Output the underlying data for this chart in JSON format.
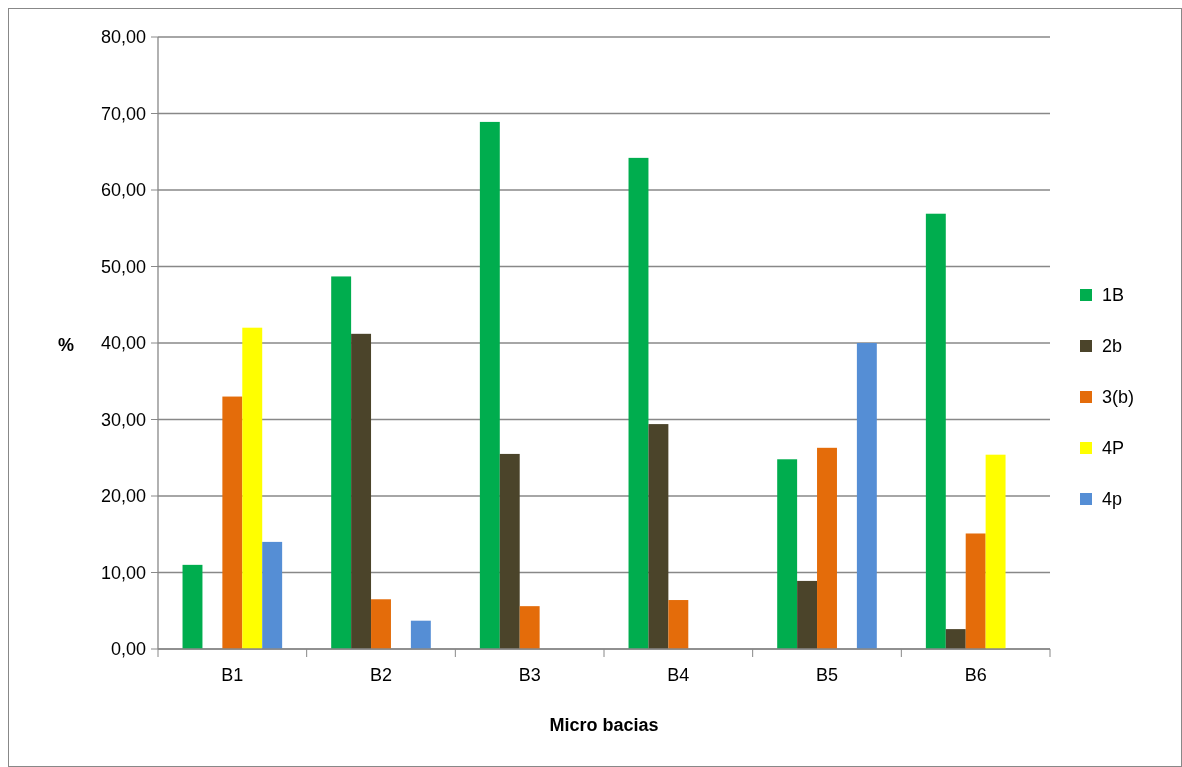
{
  "chart_data": {
    "type": "bar",
    "xlabel": "Micro bacias",
    "ylabel": "%",
    "categories": [
      "B1",
      "B2",
      "B3",
      "B4",
      "B5",
      "B6"
    ],
    "series": [
      {
        "name": "1B",
        "color": "#00ad4e",
        "values": [
          11.0,
          48.7,
          68.9,
          64.2,
          24.8,
          56.9
        ]
      },
      {
        "name": "2b",
        "color": "#4b442a",
        "values": [
          0,
          41.2,
          25.5,
          29.4,
          8.9,
          2.6
        ]
      },
      {
        "name": "3(b)",
        "color": "#e46c0a",
        "values": [
          33.0,
          6.5,
          5.6,
          6.4,
          26.3,
          15.1
        ]
      },
      {
        "name": "4P",
        "color": "#ffff00",
        "values": [
          42.0,
          0,
          0,
          0,
          0,
          25.4
        ]
      },
      {
        "name": "4p",
        "color": "#558ed5",
        "values": [
          14.0,
          3.7,
          0,
          0,
          40.0,
          0
        ]
      }
    ],
    "ylim": [
      0,
      80
    ],
    "yticks": [
      {
        "value": 0,
        "label": "0,00"
      },
      {
        "value": 10,
        "label": "10,00"
      },
      {
        "value": 20,
        "label": "20,00"
      },
      {
        "value": 30,
        "label": "30,00"
      },
      {
        "value": 40,
        "label": "40,00"
      },
      {
        "value": 50,
        "label": "50,00"
      },
      {
        "value": 60,
        "label": "60,00"
      },
      {
        "value": 70,
        "label": "70,00"
      },
      {
        "value": 80,
        "label": "80,00"
      }
    ],
    "grid": "y",
    "legend": "right"
  }
}
